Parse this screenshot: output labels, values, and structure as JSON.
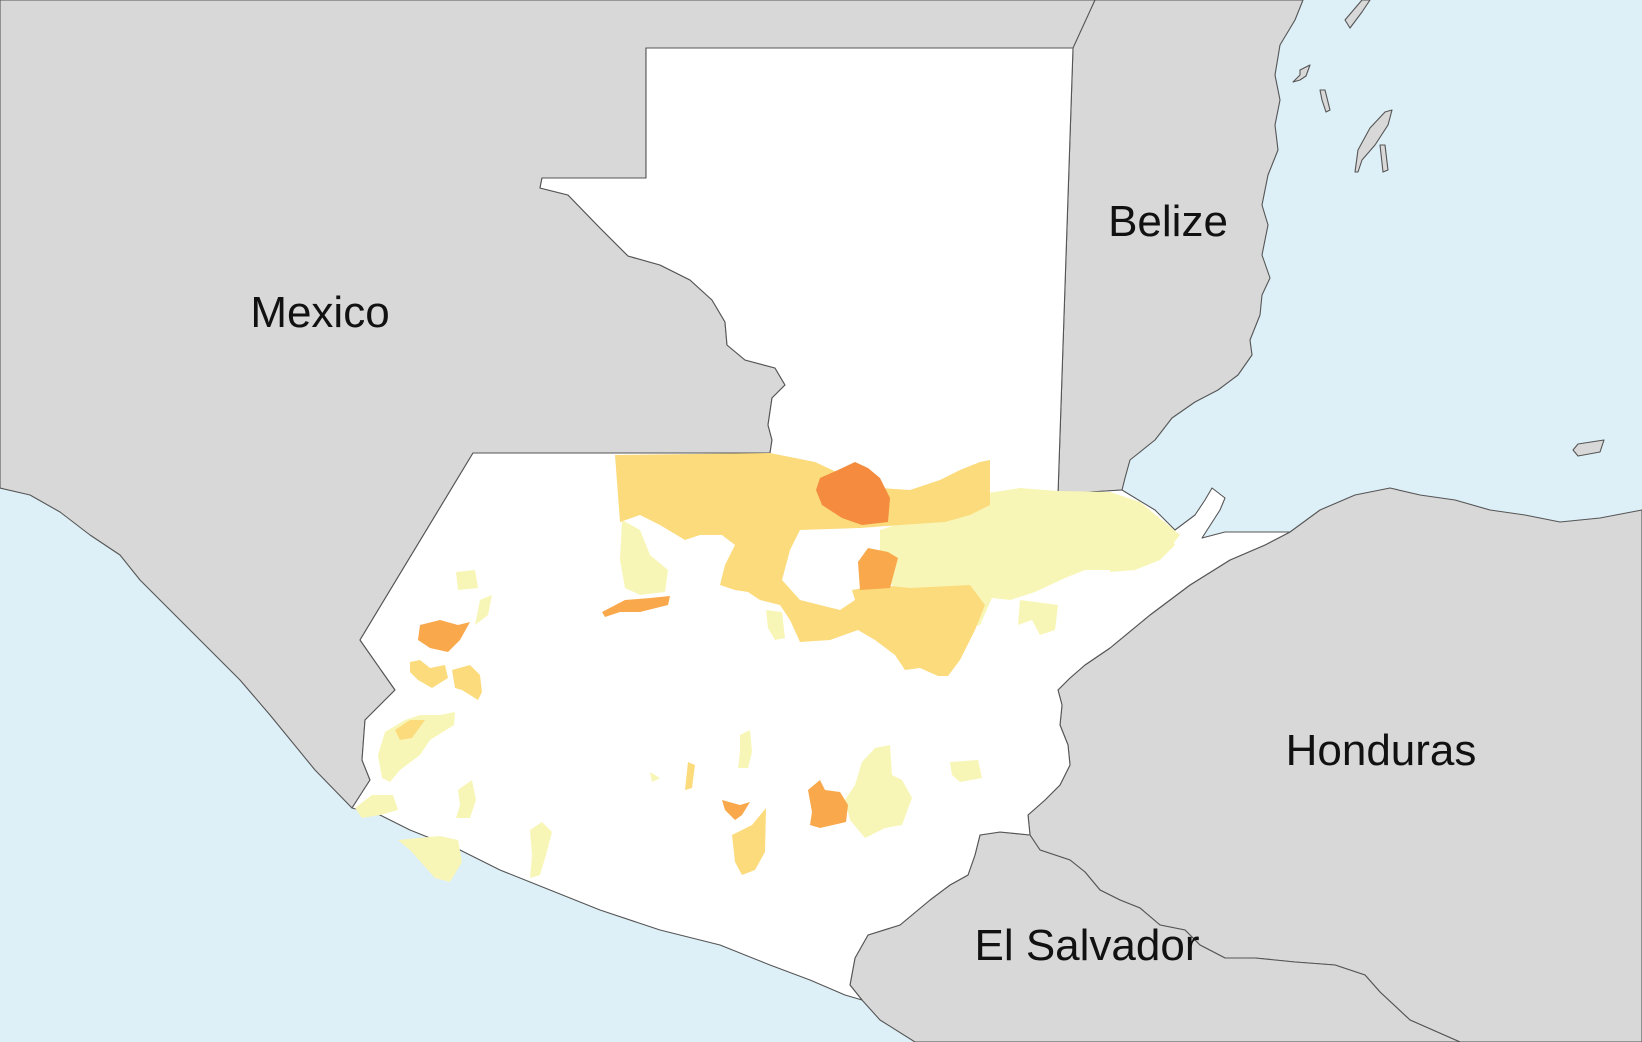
{
  "map": {
    "colors": {
      "sea": "#ddeff7",
      "neighbor_land": "#d8d8d8",
      "guatemala_land": "#ffffff",
      "border": "#555555",
      "class_light": "#f8f6b6",
      "class_medium": "#fbdb7c",
      "class_strong": "#f9a84c",
      "class_strongest": "#f48b3e"
    },
    "labels": {
      "mexico": "Mexico",
      "belize": "Belize",
      "honduras": "Honduras",
      "el_salvador": "El Salvador"
    }
  }
}
